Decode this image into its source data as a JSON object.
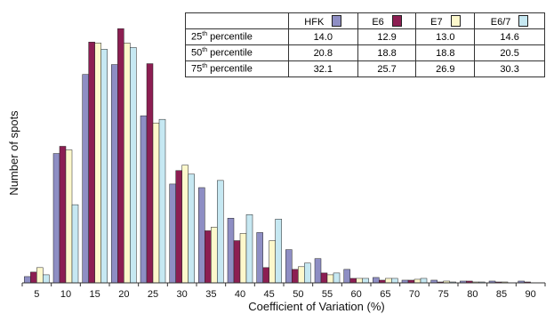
{
  "table": {
    "headers": [
      "",
      "HFK",
      "E6",
      "E7",
      "E6/7"
    ],
    "rows": [
      {
        "label_num": "25",
        "label_sup": "th",
        "label_rest": " percentile",
        "values": [
          "14.0",
          "12.9",
          "13.0",
          "14.6"
        ]
      },
      {
        "label_num": "50",
        "label_sup": "th",
        "label_rest": " percentile",
        "values": [
          "20.8",
          "18.8",
          "18.8",
          "20.5"
        ]
      },
      {
        "label_num": "75",
        "label_sup": "th",
        "label_rest": " percentile",
        "values": [
          "32.1",
          "25.7",
          "26.9",
          "30.3"
        ]
      }
    ]
  },
  "chart_data": {
    "type": "bar",
    "xlabel": "Coefficient of Variation (%)",
    "ylabel": "Number of spots",
    "categories": [
      "5",
      "10",
      "15",
      "20",
      "25",
      "30",
      "35",
      "40",
      "45",
      "50",
      "55",
      "60",
      "65",
      "70",
      "75",
      "80",
      "85",
      "90"
    ],
    "ylim": [
      0,
      300
    ],
    "y_ticks_shown": false,
    "grid": false,
    "legend": "table top-right",
    "series": [
      {
        "name": "HFK",
        "color": "#8e8ec4",
        "values": [
          7,
          144,
          232,
          243,
          186,
          110,
          106,
          72,
          56,
          37,
          27,
          15,
          6,
          3,
          3,
          2,
          2,
          2
        ]
      },
      {
        "name": "E6",
        "color": "#8c1e52",
        "values": [
          12,
          152,
          268,
          283,
          244,
          125,
          58,
          47,
          17,
          15,
          11,
          5,
          3,
          3,
          1,
          2,
          1,
          1
        ]
      },
      {
        "name": "E7",
        "color": "#fdf8cc",
        "values": [
          17,
          148,
          267,
          267,
          178,
          131,
          62,
          55,
          47,
          18,
          9,
          5,
          5,
          4,
          2,
          1,
          1,
          0
        ]
      },
      {
        "name": "E6/7",
        "color": "#c6e8f2",
        "values": [
          9,
          87,
          260,
          262,
          182,
          121,
          114,
          76,
          71,
          22,
          11,
          5,
          5,
          5,
          1,
          1,
          0,
          0
        ]
      }
    ]
  }
}
